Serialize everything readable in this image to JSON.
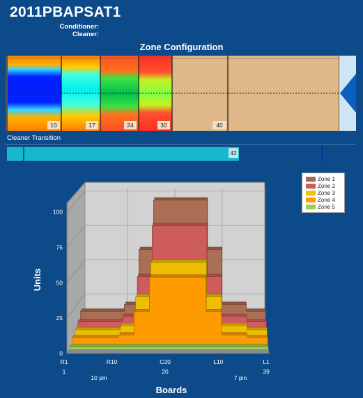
{
  "header": {
    "title": "2011PBAPSAT1",
    "conditioner_label": "Conditioner:",
    "cleaner_label": "Cleaner:"
  },
  "zone_config": {
    "title": "Zone Configuration",
    "markers": [
      "10",
      "17",
      "24",
      "30",
      "40"
    ]
  },
  "cleaner_transition": {
    "label": "Cleaner Transition",
    "value": "42"
  },
  "chart_data": {
    "type": "area",
    "ylabel": "Units",
    "xlabel": "Boards",
    "ylim": [
      0,
      100
    ],
    "y_ticks": [
      0,
      25,
      50,
      75,
      100
    ],
    "x_tick_labels": [
      "R1",
      "R10",
      "C20",
      "L10",
      "L1"
    ],
    "x_sub_labels": [
      "1",
      "20",
      "39"
    ],
    "pin_labels": [
      "10 pin",
      "7 pin"
    ],
    "boards": [
      1,
      5,
      10,
      13,
      16,
      20,
      24,
      27,
      30,
      35,
      39
    ],
    "series": [
      {
        "name": "Zone 1",
        "color": "#a86a4e",
        "values": [
          17,
          17,
          22,
          62,
          98,
          98,
          98,
          62,
          22,
          17,
          17
        ]
      },
      {
        "name": "Zone 2",
        "color": "#cf5b5b",
        "values": [
          12,
          12,
          16,
          45,
          82,
          82,
          82,
          45,
          16,
          12,
          12
        ]
      },
      {
        "name": "Zone 3",
        "color": "#f0c400",
        "values": [
          9,
          9,
          12,
          33,
          58,
          58,
          58,
          33,
          12,
          9,
          9
        ]
      },
      {
        "name": "Zone 4",
        "color": "#ff9a00",
        "values": [
          6,
          6,
          8,
          25,
          50,
          50,
          50,
          25,
          8,
          6,
          6
        ]
      },
      {
        "name": "Zone 5",
        "color": "#9bd04a",
        "values": [
          2,
          2,
          2,
          2,
          2,
          2,
          2,
          2,
          2,
          2,
          2
        ]
      }
    ],
    "legend_position": "top-right",
    "grid": true
  }
}
